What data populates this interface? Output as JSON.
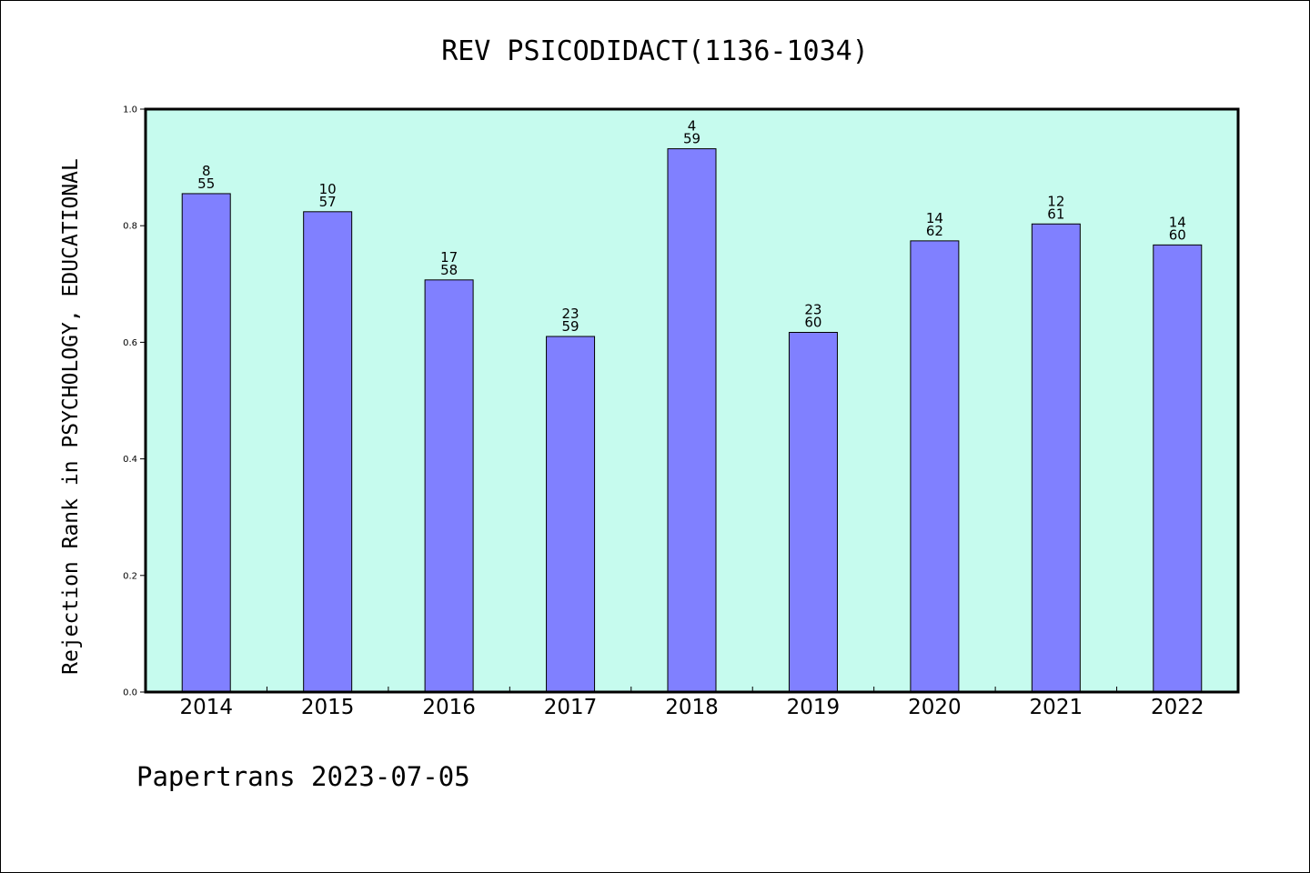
{
  "chart_data": {
    "type": "bar",
    "title": "REV PSICODIDACT(1136-1034)",
    "xlabel": "",
    "ylabel": "Rejection Rank in PSYCHOLOGY, EDUCATIONAL",
    "ylim": [
      0,
      1.0
    ],
    "yticks": [
      "0.0",
      "0.2",
      "0.4",
      "0.6",
      "0.8",
      "1.0"
    ],
    "categories": [
      "2014",
      "2015",
      "2016",
      "2017",
      "2018",
      "2019",
      "2020",
      "2021",
      "2022"
    ],
    "values": [
      0.855,
      0.824,
      0.707,
      0.61,
      0.932,
      0.617,
      0.774,
      0.803,
      0.767
    ],
    "rank_labels": [
      "8",
      "10",
      "17",
      "23",
      "4",
      "23",
      "14",
      "12",
      "14"
    ],
    "total_labels": [
      "55",
      "57",
      "58",
      "59",
      "59",
      "60",
      "62",
      "61",
      "60"
    ],
    "grid": false,
    "colors": {
      "plot_background": "#c6fbee",
      "bar_fill": "#8080ff",
      "bar_stroke": "#000000"
    }
  },
  "footer": {
    "text": "Papertrans 2023-07-05"
  }
}
